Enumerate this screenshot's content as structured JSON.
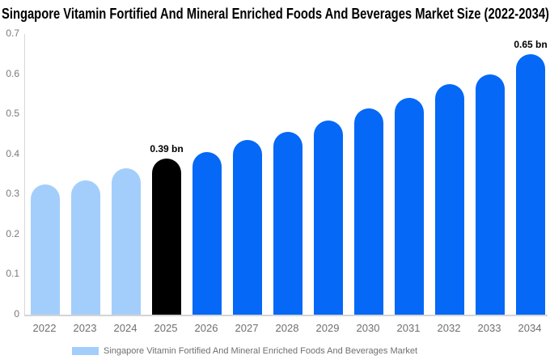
{
  "title": "Singapore Vitamin Fortified And Mineral Enriched Foods And Beverages Market Size (2022-2034)",
  "colors": {
    "historical_bar": "#a3cefb",
    "current_year_bar": "#000000",
    "forecast_bar": "#0568f6",
    "axis_text": "#7a7a7a",
    "axis_line": "#d8d8d8",
    "annotation_text": "#000000",
    "background": "#ffffff"
  },
  "chart_data": {
    "type": "bar",
    "title": "Singapore Vitamin Fortified And Mineral Enriched Foods And Beverages Market Size (2022-2034)",
    "categories": [
      "2022",
      "2023",
      "2024",
      "2025",
      "2026",
      "2027",
      "2028",
      "2029",
      "2030",
      "2031",
      "2032",
      "2033",
      "2034"
    ],
    "values": [
      0.325,
      0.335,
      0.365,
      0.39,
      0.405,
      0.435,
      0.455,
      0.485,
      0.515,
      0.54,
      0.575,
      0.6,
      0.65
    ],
    "unit": "bn",
    "xlabel": "",
    "ylabel": "",
    "ylim": [
      0,
      0.7
    ],
    "yticks": [
      "0",
      "0.1",
      "0.2",
      "0.3",
      "0.4",
      "0.5",
      "0.6",
      "0.7"
    ],
    "grid": false,
    "bar_colors": [
      "#a3cefb",
      "#a3cefb",
      "#a3cefb",
      "#000000",
      "#0568f6",
      "#0568f6",
      "#0568f6",
      "#0568f6",
      "#0568f6",
      "#0568f6",
      "#0568f6",
      "#0568f6",
      "#0568f6"
    ],
    "annotations": [
      {
        "category": "2025",
        "text": "0.39 bn"
      },
      {
        "category": "2034",
        "text": "0.65 bn"
      }
    ],
    "legend": {
      "position": "bottom",
      "swatch_color": "#a3cefb",
      "label": "Singapore Vitamin Fortified And Mineral Enriched Foods And Beverages Market"
    }
  }
}
